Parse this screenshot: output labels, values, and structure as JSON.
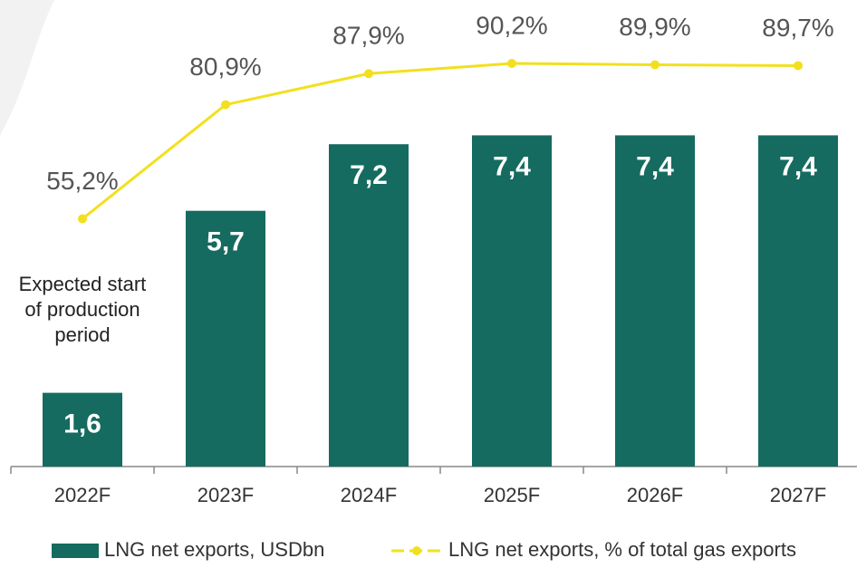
{
  "chart_data": {
    "type": "bar_line",
    "categories": [
      "2022F",
      "2023F",
      "2024F",
      "2025F",
      "2026F",
      "2027F"
    ],
    "series": [
      {
        "name": "LNG net exports, USDbn",
        "color": "#156b5f",
        "type": "bar",
        "values": [
          1.6,
          5.7,
          7.2,
          7.4,
          7.4,
          7.4
        ],
        "value_labels": [
          "1,6",
          "5,7",
          "7,2",
          "7,4",
          "7,4",
          "7,4"
        ]
      },
      {
        "name": "LNG net exports, % of total gas exports",
        "color": "#f2e01e",
        "type": "line",
        "axis": "y2",
        "values": [
          55.2,
          80.9,
          87.9,
          90.2,
          89.9,
          89.7
        ],
        "value_labels": [
          "55,2%",
          "80,9%",
          "87,9%",
          "90,2%",
          "89,9%",
          "89,7%"
        ]
      }
    ],
    "ylim": [
      0,
      10
    ],
    "y2lim": [
      0,
      100
    ],
    "annotation": "Expected start of production period",
    "legend": "bottom"
  }
}
